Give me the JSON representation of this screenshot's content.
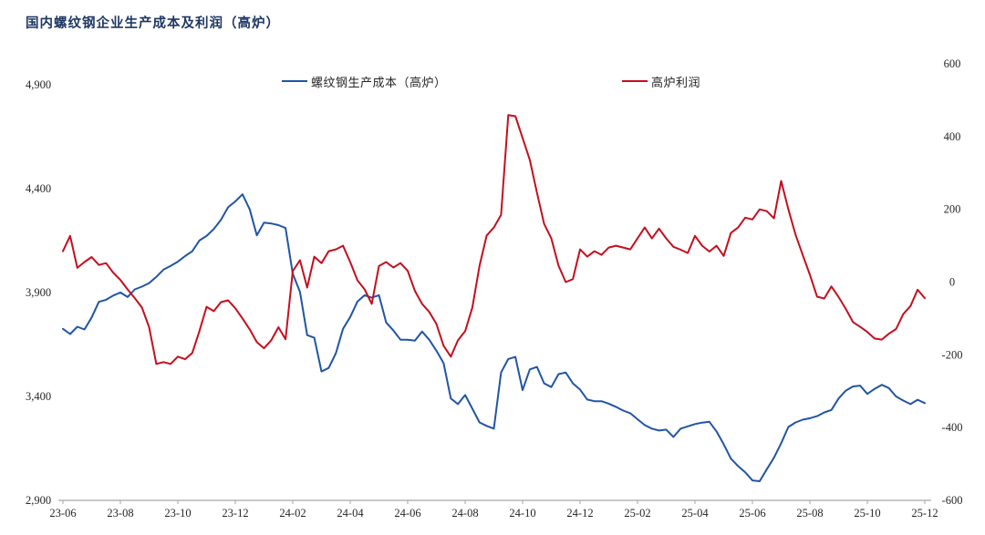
{
  "title": "国内螺纹钢企业生产成本及利润（高炉）",
  "title_color": "#1F3864",
  "legend": {
    "cost": {
      "label": "螺纹钢生产成本（高炉）",
      "color": "#2155A4"
    },
    "profit": {
      "label": "高炉利润",
      "color": "#C40F1E"
    }
  },
  "chart_data": {
    "type": "line",
    "title": "国内螺纹钢企业生产成本及利润（高炉）",
    "grid": false,
    "legend_position": "top",
    "background": "#ffffff",
    "x_axis": {
      "tick_labels": [
        "23-06",
        "23-08",
        "23-10",
        "23-12",
        "24-02",
        "24-04",
        "24-06",
        "24-08",
        "24-10",
        "24-12",
        "25-02",
        "25-04",
        "25-06",
        "25-08",
        "25-10",
        "25-12"
      ],
      "tick_interval": "2 months",
      "axis_color": "#A6A6A6"
    },
    "x_range_months": [
      0,
      30
    ],
    "left_y_axis": {
      "min": 2900,
      "max": 5000,
      "tick_values": [
        2900,
        3400,
        3900,
        4400,
        4900
      ],
      "tick_labels": [
        "2,900",
        "3,400",
        "3,900",
        "4,400",
        "4,900"
      ]
    },
    "right_y_axis": {
      "min": -600,
      "max": 600,
      "tick_values": [
        600,
        400,
        200,
        0,
        -200,
        -400,
        -600
      ],
      "tick_labels": [
        "600",
        "400",
        "200",
        "0",
        "-200",
        "-400",
        "-600"
      ]
    },
    "series": [
      {
        "name": "螺纹钢生产成本（高炉）",
        "axis": "left",
        "color": "#2155A4",
        "x_start_month_offset": 0,
        "x_step_months": 0.25,
        "values": [
          3725,
          3700,
          3735,
          3722,
          3780,
          3855,
          3865,
          3885,
          3900,
          3878,
          3915,
          3928,
          3945,
          3975,
          4010,
          4028,
          4048,
          4075,
          4098,
          4150,
          4172,
          4205,
          4250,
          4310,
          4338,
          4372,
          4300,
          4175,
          4236,
          4232,
          4224,
          4210,
          3990,
          3903,
          3695,
          3682,
          3520,
          3537,
          3608,
          3725,
          3782,
          3856,
          3887,
          3875,
          3887,
          3756,
          3717,
          3673,
          3673,
          3668,
          3712,
          3673,
          3620,
          3560,
          3390,
          3363,
          3407,
          3341,
          3275,
          3258,
          3245,
          3515,
          3580,
          3590,
          3430,
          3530,
          3542,
          3463,
          3445,
          3507,
          3515,
          3463,
          3433,
          3385,
          3377,
          3377,
          3365,
          3350,
          3332,
          3319,
          3290,
          3262,
          3245,
          3236,
          3240,
          3205,
          3245,
          3256,
          3267,
          3274,
          3278,
          3232,
          3170,
          3101,
          3065,
          3035,
          2996,
          2992,
          3050,
          3105,
          3175,
          3253,
          3275,
          3288,
          3295,
          3305,
          3323,
          3335,
          3390,
          3428,
          3448,
          3452,
          3412,
          3436,
          3456,
          3440,
          3400,
          3380,
          3363,
          3384,
          3368
        ]
      },
      {
        "name": "高炉利润",
        "axis": "right",
        "color": "#C40F1E",
        "x_start_month_offset": 0,
        "x_step_months": 0.25,
        "values": [
          85,
          127,
          39,
          55,
          69,
          47,
          52,
          26,
          6,
          -20,
          -44,
          -70,
          -124,
          -225,
          -220,
          -225,
          -205,
          -212,
          -195,
          -135,
          -68,
          -80,
          -55,
          -50,
          -72,
          -100,
          -130,
          -165,
          -182,
          -160,
          -124,
          -157,
          30,
          60,
          -15,
          70,
          52,
          85,
          90,
          100,
          55,
          5,
          -20,
          -60,
          44,
          55,
          40,
          52,
          31,
          -24,
          -60,
          -82,
          -115,
          -175,
          -205,
          -160,
          -135,
          -70,
          45,
          128,
          150,
          185,
          459,
          456,
          396,
          336,
          245,
          160,
          120,
          45,
          0,
          8,
          90,
          70,
          85,
          75,
          95,
          100,
          95,
          90,
          120,
          150,
          120,
          147,
          120,
          97,
          89,
          80,
          127,
          100,
          84,
          100,
          72,
          135,
          150,
          177,
          172,
          200,
          195,
          175,
          278,
          200,
          130,
          75,
          20,
          -40,
          -45,
          -12,
          -41,
          -74,
          -110,
          -123,
          -137,
          -155,
          -158,
          -142,
          -129,
          -88,
          -66,
          -21,
          -44
        ]
      }
    ]
  }
}
